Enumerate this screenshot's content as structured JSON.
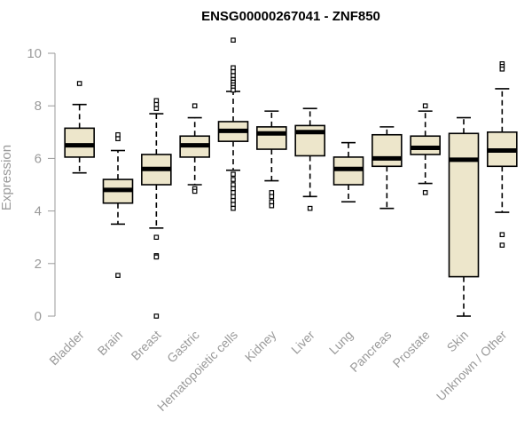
{
  "chart_data": {
    "type": "boxplot",
    "title": "ENSG00000267041 - ZNF850",
    "xlabel": "",
    "ylabel": "Expression",
    "ylim": [
      0,
      10.5
    ],
    "yticks": [
      0,
      2,
      4,
      6,
      8,
      10
    ],
    "box_fill": "#ede6cb",
    "axis_color": "#9a9a9a",
    "categories": [
      "Bladder",
      "Brain",
      "Breast",
      "Gastric",
      "Hematopoietic cells",
      "Kidney",
      "Liver",
      "Lung",
      "Pancreas",
      "Prostate",
      "Skin",
      "Unknown / Other"
    ],
    "boxes": [
      {
        "name": "Bladder",
        "whisker_low": 5.45,
        "q1": 6.05,
        "median": 6.5,
        "q3": 7.15,
        "whisker_high": 8.05,
        "outliers": [
          8.85
        ]
      },
      {
        "name": "Brain",
        "whisker_low": 3.5,
        "q1": 4.3,
        "median": 4.8,
        "q3": 5.2,
        "whisker_high": 6.3,
        "outliers": [
          6.9,
          6.75,
          1.55
        ]
      },
      {
        "name": "Breast",
        "whisker_low": 3.35,
        "q1": 5.0,
        "median": 5.6,
        "q3": 6.15,
        "whisker_high": 7.7,
        "outliers": [
          8.2,
          8.05,
          7.9,
          3.0,
          2.3,
          2.25,
          0.0
        ]
      },
      {
        "name": "Gastric",
        "whisker_low": 5.0,
        "q1": 6.05,
        "median": 6.5,
        "q3": 6.85,
        "whisker_high": 7.55,
        "outliers": [
          8.0,
          4.85,
          4.75
        ]
      },
      {
        "name": "Hematopoietic cells",
        "whisker_low": 5.55,
        "q1": 6.65,
        "median": 7.05,
        "q3": 7.4,
        "whisker_high": 8.55,
        "outliers": [
          10.5,
          9.45,
          9.3,
          9.15,
          9.0,
          8.9,
          8.8,
          8.7,
          8.6,
          5.4,
          5.2,
          5.0,
          4.85,
          4.7,
          4.55,
          4.4,
          4.25,
          4.1
        ]
      },
      {
        "name": "Kidney",
        "whisker_low": 5.15,
        "q1": 6.35,
        "median": 6.95,
        "q3": 7.2,
        "whisker_high": 7.8,
        "outliers": [
          4.7,
          4.55,
          4.35,
          4.2
        ]
      },
      {
        "name": "Liver",
        "whisker_low": 4.55,
        "q1": 6.1,
        "median": 7.0,
        "q3": 7.25,
        "whisker_high": 7.9,
        "outliers": [
          4.1
        ]
      },
      {
        "name": "Lung",
        "whisker_low": 4.35,
        "q1": 5.0,
        "median": 5.6,
        "q3": 6.05,
        "whisker_high": 6.6,
        "outliers": []
      },
      {
        "name": "Pancreas",
        "whisker_low": 4.1,
        "q1": 5.7,
        "median": 6.0,
        "q3": 6.9,
        "whisker_high": 7.2,
        "outliers": []
      },
      {
        "name": "Prostate",
        "whisker_low": 5.05,
        "q1": 6.15,
        "median": 6.4,
        "q3": 6.85,
        "whisker_high": 7.8,
        "outliers": [
          8.0,
          4.7
        ]
      },
      {
        "name": "Skin",
        "whisker_low": 0.0,
        "q1": 1.5,
        "median": 5.95,
        "q3": 6.95,
        "whisker_high": 7.55,
        "outliers": []
      },
      {
        "name": "Unknown / Other",
        "whisker_low": 3.95,
        "q1": 5.7,
        "median": 6.3,
        "q3": 7.0,
        "whisker_high": 8.65,
        "outliers": [
          9.6,
          9.5,
          9.4,
          3.1,
          2.7
        ]
      }
    ]
  }
}
